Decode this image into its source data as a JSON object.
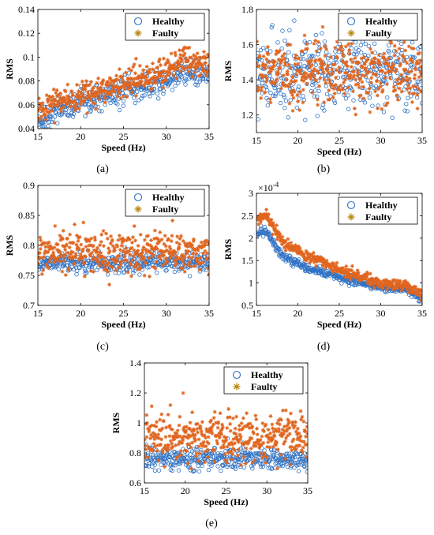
{
  "colors": {
    "healthy": "#2f72c4",
    "faulty": "#e0651f",
    "faulty_legend": "#b8860b",
    "axis": "#000000",
    "frame_bg": "#ffffff"
  },
  "chart_data": [
    {
      "id": "a",
      "type": "scatter",
      "caption": "(a)",
      "xlabel": "Speed (Hz)",
      "ylabel": "RMS",
      "xlim": [
        15,
        35
      ],
      "ylim": [
        0.04,
        0.14
      ],
      "xticks": [
        15,
        20,
        25,
        30,
        35
      ],
      "xtick_labels": [
        "15",
        "20",
        "25",
        "30",
        "35"
      ],
      "yticks": [
        0.04,
        0.06,
        0.08,
        0.1,
        0.12,
        0.14
      ],
      "ytick_labels": [
        "0.04",
        "0.06",
        "0.08",
        "0.1",
        "0.12",
        "0.14"
      ],
      "exponent_label": "",
      "legend": {
        "placement": "top-right",
        "entries": [
          "Healthy",
          "Faulty"
        ]
      },
      "series": [
        {
          "name": "Healthy",
          "marker": "circle",
          "trend": [
            [
              15,
              0.049
            ],
            [
              18,
              0.057
            ],
            [
              22,
              0.066
            ],
            [
              26,
              0.072
            ],
            [
              30,
              0.08
            ],
            [
              32,
              0.088
            ],
            [
              35,
              0.085
            ]
          ],
          "spread": 0.0055
        },
        {
          "name": "Faulty",
          "marker": "star",
          "trend": [
            [
              15,
              0.055
            ],
            [
              18,
              0.064
            ],
            [
              22,
              0.072
            ],
            [
              26,
              0.08
            ],
            [
              30,
              0.088
            ],
            [
              32,
              0.097
            ],
            [
              35,
              0.094
            ]
          ],
          "spread": 0.0055
        }
      ]
    },
    {
      "id": "b",
      "type": "scatter",
      "caption": "(b)",
      "xlabel": "Speed (Hz)",
      "ylabel": "RMS",
      "xlim": [
        15,
        35
      ],
      "ylim": [
        1.1,
        1.8
      ],
      "xticks": [
        15,
        20,
        25,
        30,
        35
      ],
      "xtick_labels": [
        "15",
        "20",
        "25",
        "30",
        "35"
      ],
      "yticks": [
        1.2,
        1.4,
        1.6,
        1.8
      ],
      "ytick_labels": [
        "1.2",
        "1.4",
        "1.6",
        "1.8"
      ],
      "exponent_label": "",
      "legend": {
        "placement": "top-right",
        "entries": [
          "Healthy",
          "Faulty"
        ]
      },
      "series": [
        {
          "name": "Healthy",
          "marker": "circle",
          "trend": [
            [
              15,
              1.44
            ],
            [
              35,
              1.44
            ]
          ],
          "spread": 0.1
        },
        {
          "name": "Faulty",
          "marker": "star",
          "trend": [
            [
              15,
              1.45
            ],
            [
              35,
              1.45
            ]
          ],
          "spread": 0.09
        }
      ]
    },
    {
      "id": "c",
      "type": "scatter",
      "caption": "(c)",
      "xlabel": "Speed (Hz)",
      "ylabel": "RMS",
      "xlim": [
        15,
        35
      ],
      "ylim": [
        0.7,
        0.9
      ],
      "xticks": [
        15,
        20,
        25,
        30,
        35
      ],
      "xtick_labels": [
        "15",
        "20",
        "25",
        "30",
        "35"
      ],
      "yticks": [
        0.7,
        0.75,
        0.8,
        0.85,
        0.9
      ],
      "ytick_labels": [
        "0.7",
        "0.75",
        "0.8",
        "0.85",
        "0.9"
      ],
      "exponent_label": "",
      "legend": {
        "placement": "top-right",
        "entries": [
          "Healthy",
          "Faulty"
        ]
      },
      "series": [
        {
          "name": "Healthy",
          "marker": "circle",
          "trend": [
            [
              15,
              0.772
            ],
            [
              35,
              0.772
            ]
          ],
          "spread": 0.008
        },
        {
          "name": "Faulty",
          "marker": "star",
          "trend": [
            [
              15,
              0.79
            ],
            [
              35,
              0.79
            ]
          ],
          "spread": 0.017
        }
      ]
    },
    {
      "id": "d",
      "type": "scatter",
      "caption": "(d)",
      "xlabel": "Speed (Hz)",
      "ylabel": "RMS",
      "xlim": [
        15,
        35
      ],
      "ylim": [
        0.5,
        3.0
      ],
      "xticks": [
        15,
        20,
        25,
        30,
        35
      ],
      "xtick_labels": [
        "15",
        "20",
        "25",
        "30",
        "35"
      ],
      "yticks": [
        0.5,
        1.0,
        1.5,
        2.0,
        2.5,
        3.0
      ],
      "ytick_labels": [
        "0.5",
        "1",
        "1.5",
        "2",
        "2.5",
        "3"
      ],
      "exponent_base": "×10",
      "exponent_power": "-4",
      "legend": {
        "placement": "top-right",
        "entries": [
          "Healthy",
          "Faulty"
        ]
      },
      "series": [
        {
          "name": "Healthy",
          "marker": "circle",
          "trend": [
            [
              15,
              2.05
            ],
            [
              16,
              2.2
            ],
            [
              18,
              1.62
            ],
            [
              20,
              1.42
            ],
            [
              25,
              1.12
            ],
            [
              30,
              0.9
            ],
            [
              33,
              0.85
            ],
            [
              35,
              0.66
            ]
          ],
          "spread": 0.05
        },
        {
          "name": "Faulty",
          "marker": "star",
          "trend": [
            [
              15,
              2.35
            ],
            [
              16,
              2.55
            ],
            [
              18,
              1.95
            ],
            [
              20,
              1.7
            ],
            [
              25,
              1.3
            ],
            [
              30,
              1.0
            ],
            [
              33,
              0.95
            ],
            [
              35,
              0.76
            ]
          ],
          "spread": 0.06
        }
      ]
    },
    {
      "id": "e",
      "type": "scatter",
      "caption": "(e)",
      "xlabel": "Speed (Hz)",
      "ylabel": "RMS",
      "xlim": [
        15,
        35
      ],
      "ylim": [
        0.6,
        1.4
      ],
      "xticks": [
        15,
        20,
        25,
        30,
        35
      ],
      "xtick_labels": [
        "15",
        "20",
        "25",
        "30",
        "35"
      ],
      "yticks": [
        0.6,
        0.8,
        1.0,
        1.2,
        1.4
      ],
      "ytick_labels": [
        "0.6",
        "0.8",
        "1",
        "1.2",
        "1.4"
      ],
      "exponent_label": "",
      "legend": {
        "placement": "top-right",
        "entries": [
          "Healthy",
          "Faulty"
        ]
      },
      "series": [
        {
          "name": "Healthy",
          "marker": "circle",
          "trend": [
            [
              15,
              0.76
            ],
            [
              35,
              0.76
            ]
          ],
          "spread": 0.035
        },
        {
          "name": "Faulty",
          "marker": "star",
          "trend": [
            [
              15,
              0.9
            ],
            [
              35,
              0.9
            ]
          ],
          "spread": 0.08
        }
      ]
    }
  ]
}
